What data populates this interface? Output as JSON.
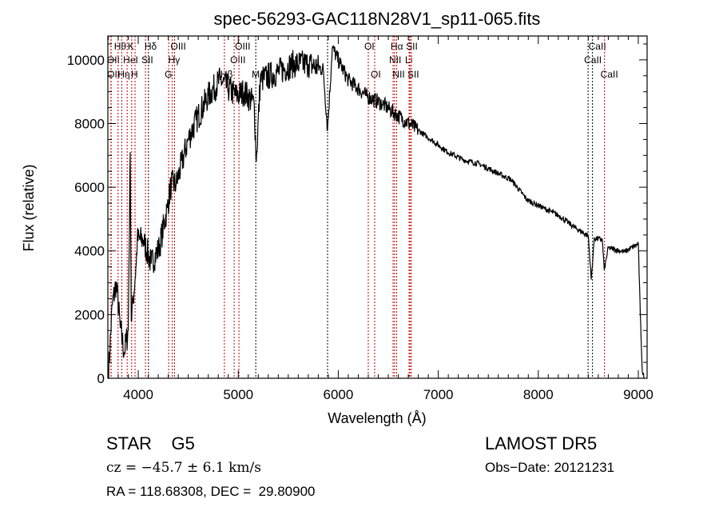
{
  "chart_data": {
    "type": "line",
    "title": "spec-56293-GAC118N28V1_sp11-065.fits",
    "xlabel": "Wavelength (Å)",
    "ylabel": "Flux (relative)",
    "xlim": [
      3696,
      9088
    ],
    "ylim": [
      0,
      10750
    ],
    "xticks": [
      4000,
      5000,
      6000,
      7000,
      8000,
      9000
    ],
    "yticks": [
      0,
      2000,
      4000,
      6000,
      8000,
      10000
    ],
    "grid": false,
    "series": [
      {
        "name": "spectrum",
        "x": [
          3700,
          3740,
          3780,
          3820,
          3860,
          3900,
          3920,
          3930,
          3950,
          3980,
          3990,
          4050,
          4130,
          4210,
          4290,
          4330,
          4380,
          4500,
          4580,
          4700,
          4820,
          4900,
          4980,
          5060,
          5160,
          5180,
          5220,
          5400,
          5550,
          5700,
          5850,
          5893,
          5940,
          6020,
          6100,
          6280,
          6440,
          6600,
          6770,
          6930,
          7090,
          7250,
          7410,
          7570,
          7730,
          7890,
          8050,
          8210,
          8370,
          8500,
          8530,
          8560,
          8640,
          8660,
          8700,
          8860,
          9000,
          9020,
          9040,
          9060
        ],
        "y": [
          0,
          2300,
          3000,
          1600,
          800,
          1500,
          7100,
          1800,
          2500,
          3600,
          4350,
          4350,
          3600,
          4100,
          5350,
          6100,
          6100,
          7500,
          8100,
          8870,
          9370,
          9100,
          8870,
          9000,
          8600,
          6800,
          9370,
          9620,
          9870,
          9870,
          9700,
          7800,
          10380,
          9870,
          9370,
          8870,
          8620,
          8240,
          7860,
          7490,
          7110,
          6860,
          6730,
          6480,
          6230,
          5600,
          5350,
          5100,
          4720,
          4470,
          3100,
          4400,
          4350,
          3400,
          4100,
          3970,
          4220,
          2000,
          200,
          0
        ]
      }
    ],
    "lines": [
      {
        "name": "OII",
        "wave": 3727,
        "row": 2,
        "type": "emission"
      },
      {
        "name": "OII",
        "wave": 3729,
        "row": 3,
        "type": "emission"
      },
      {
        "name": "Hθ",
        "wave": 3798,
        "row": 1,
        "type": "emission"
      },
      {
        "name": "Hη",
        "wave": 3835,
        "row": 3,
        "type": "emission"
      },
      {
        "name": "HeI",
        "wave": 3889,
        "row": 2,
        "type": "emission"
      },
      {
        "name": "K",
        "wave": 3934,
        "row": 1,
        "type": "emission"
      },
      {
        "name": "H",
        "wave": 3968,
        "row": 3,
        "type": "emission"
      },
      {
        "name": "SII",
        "wave": 4072,
        "row": 2,
        "type": "emission"
      },
      {
        "name": "Hδ",
        "wave": 4102,
        "row": 1,
        "type": "absorption"
      },
      {
        "name": "G",
        "wave": 4304,
        "row": 3,
        "type": "emission"
      },
      {
        "name": "Hγ",
        "wave": 4340,
        "row": 2,
        "type": "emission"
      },
      {
        "name": "OIII",
        "wave": 4363,
        "row": 1,
        "type": "emission"
      },
      {
        "name": "Hβ",
        "wave": 4861,
        "row": 3,
        "type": "emission"
      },
      {
        "name": "OIII",
        "wave": 4959,
        "row": 2,
        "type": "emission"
      },
      {
        "name": "OIII",
        "wave": 5007,
        "row": 1,
        "type": "emission"
      },
      {
        "name": "Mg",
        "wave": 5175,
        "row": 3,
        "type": "absorption"
      },
      {
        "name": "",
        "wave": 5893,
        "row": 0,
        "type": "absorption"
      },
      {
        "name": "OI",
        "wave": 6300,
        "row": 1,
        "type": "emission"
      },
      {
        "name": "OI",
        "wave": 6364,
        "row": 3,
        "type": "emission"
      },
      {
        "name": "NII",
        "wave": 6548,
        "row": 2,
        "type": "emission"
      },
      {
        "name": "Hα",
        "wave": 6563,
        "row": 1,
        "type": "emission"
      },
      {
        "name": "NII",
        "wave": 6583,
        "row": 3,
        "type": "emission"
      },
      {
        "name": "Li",
        "wave": 6708,
        "row": 2,
        "type": "emission"
      },
      {
        "name": "SII",
        "wave": 6717,
        "row": 1,
        "type": "emission"
      },
      {
        "name": "SII",
        "wave": 6731,
        "row": 3,
        "type": "emission"
      },
      {
        "name": "CaII",
        "wave": 8498,
        "row": 2,
        "type": "absorption"
      },
      {
        "name": "CaII",
        "wave": 8542,
        "row": 1,
        "type": "absorption"
      },
      {
        "name": "CaII",
        "wave": 8662,
        "row": 3,
        "type": "emission"
      }
    ],
    "colors": {
      "emission": "#c00000",
      "absorption": "#000000",
      "spectrum": "#000000"
    }
  },
  "info": {
    "object_class": "STAR    G5",
    "survey": "LAMOST DR5",
    "cz": "cz = −45.7 ± 6.1 km/s",
    "obs_date": "Obs−Date: 20121231",
    "coords": "RA = 118.68308, DEC =  29.80900"
  }
}
